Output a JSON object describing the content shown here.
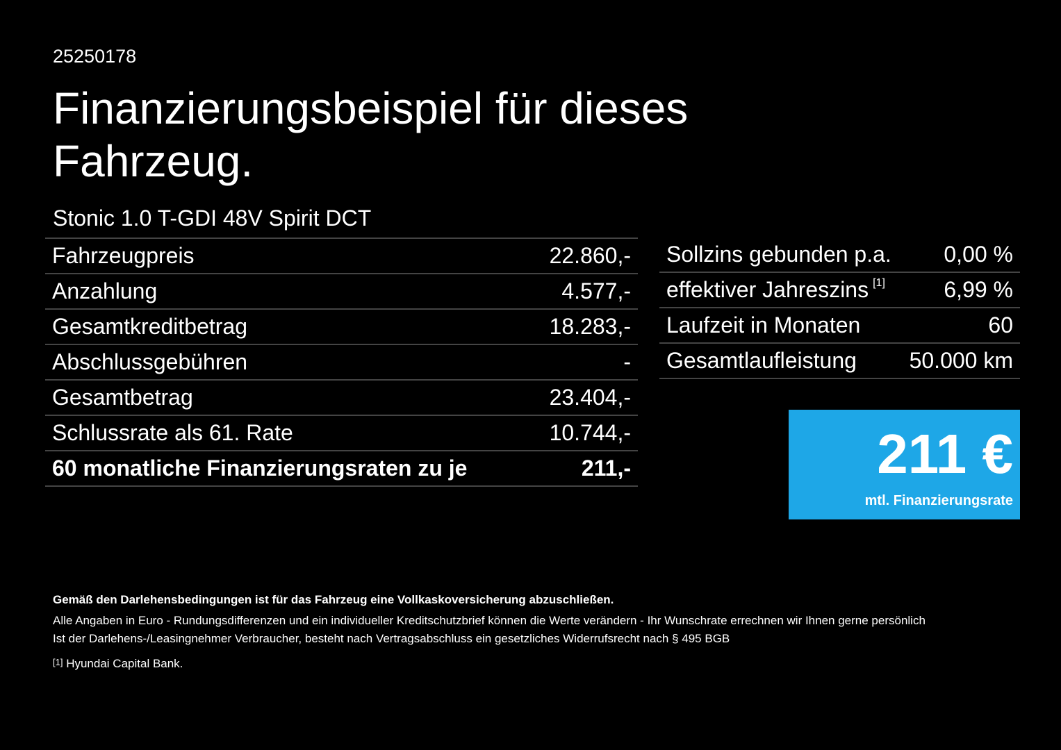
{
  "header": {
    "id": "25250178",
    "title_line1": "Finanzierungsbeispiel für dieses",
    "title_line2": "Fahrzeug.",
    "model": "Stonic 1.0 T-GDI 48V Spirit DCT"
  },
  "left_table": {
    "rows": [
      [
        "Fahrzeugpreis",
        "22.860,-"
      ],
      [
        "Anzahlung",
        "4.577,-"
      ],
      [
        "Gesamtkreditbetrag",
        "18.283,-"
      ],
      [
        "Abschlussgebühren",
        "-"
      ],
      [
        "Gesamtbetrag",
        "23.404,-"
      ],
      [
        "Schlussrate als 61. Rate",
        "10.744,-"
      ],
      [
        "60 monatliche Finanzierungsraten zu je",
        "211,-"
      ]
    ]
  },
  "right_table": {
    "rows": [
      [
        "Sollzins gebunden p.a.",
        "0,00 %"
      ],
      [
        "effektiver Jahreszins",
        "6,99 %"
      ],
      [
        "Laufzeit in Monaten",
        "60"
      ],
      [
        "Gesamtlaufleistung",
        "50.000 km"
      ]
    ],
    "footnote_ref": "[1]"
  },
  "rate_box": {
    "amount": "211 €",
    "label": "mtl. Finanzierungsrate"
  },
  "footer": {
    "bold": "Gemäß den Darlehensbedingungen ist für das Fahrzeug eine Vollkaskoversicherung abzuschließen.",
    "line1": "Alle Angaben in Euro - Rundungsdifferenzen und ein individueller Kreditschutzbrief können die Werte verändern - Ihr Wunschrate errechnen wir Ihnen gerne persönlich",
    "line2": "Ist der Darlehens-/Leasingnehmer Verbraucher, besteht nach Vertragsabschluss ein gesetzliches Widerrufsrecht nach § 495 BGB",
    "note_ref": "[1]",
    "note": "Hyundai Capital Bank."
  }
}
